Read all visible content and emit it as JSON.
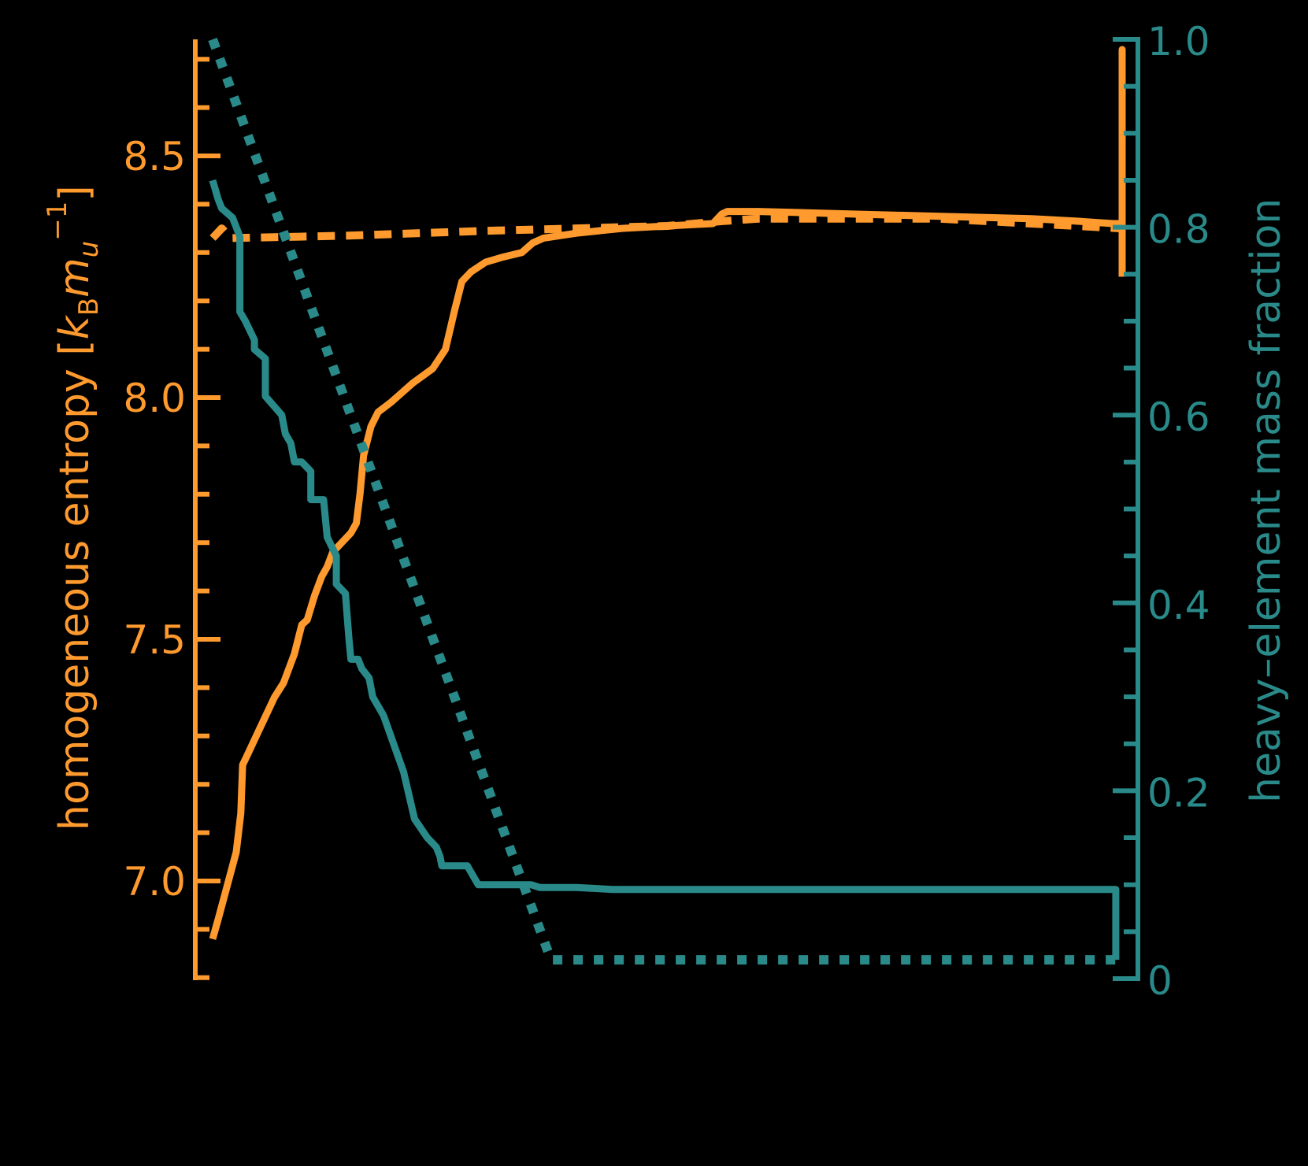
{
  "colors": {
    "background": "#000000",
    "entropy": "#FF9A2E",
    "metallicity": "#2A8A8A"
  },
  "left_axis": {
    "title_main": "homogeneous entropy [",
    "title_k": "k",
    "title_B": "B",
    "title_m": "m",
    "title_u": "u",
    "title_exp": "−1",
    "title_close": "]",
    "ticks": [
      "7.0",
      "7.5",
      "8.0",
      "8.5"
    ]
  },
  "right_axis": {
    "title": "heavy–element mass fraction",
    "ticks": [
      "0",
      "0.2",
      "0.4",
      "0.6",
      "0.8",
      "1.0"
    ]
  },
  "chart_data": {
    "type": "line",
    "title": "",
    "xlabel": "",
    "x_axis_visible": false,
    "x_note": "x is normalized position across the plot (0 = left, 1 = right); x-axis is not rendered",
    "y_left": {
      "label": "homogeneous entropy [k_B m_u^-1]",
      "ylim": [
        6.8,
        8.74
      ],
      "ticks": [
        7.0,
        7.5,
        8.0,
        8.5
      ],
      "minor_step": 0.1
    },
    "y_right": {
      "label": "heavy–element mass fraction",
      "ylim": [
        0,
        1.0
      ],
      "ticks": [
        0,
        0.2,
        0.4,
        0.6,
        0.8,
        1.0
      ],
      "minor_step": 0.05
    },
    "grid": false,
    "legend": null,
    "series": [
      {
        "name": "entropy (solid)",
        "axis": "left",
        "style": "solid",
        "color": "#FF9A2E",
        "x": [
          0.0,
          0.006,
          0.016,
          0.026,
          0.031,
          0.033,
          0.038,
          0.048,
          0.058,
          0.068,
          0.078,
          0.09,
          0.098,
          0.104,
          0.112,
          0.12,
          0.126,
          0.132,
          0.142,
          0.152,
          0.158,
          0.162,
          0.166,
          0.174,
          0.182,
          0.196,
          0.22,
          0.242,
          0.256,
          0.266,
          0.274,
          0.284,
          0.3,
          0.318,
          0.34,
          0.352,
          0.364,
          0.4,
          0.45,
          0.5,
          0.55,
          0.56,
          0.566,
          0.6,
          0.7,
          0.8,
          0.9,
          0.95,
          0.99,
          1.0,
          1.0,
          1.0
        ],
        "y": [
          6.88,
          6.92,
          6.99,
          7.06,
          7.14,
          7.24,
          7.26,
          7.3,
          7.34,
          7.38,
          7.41,
          7.47,
          7.53,
          7.54,
          7.59,
          7.63,
          7.65,
          7.68,
          7.7,
          7.72,
          7.74,
          7.8,
          7.88,
          7.94,
          7.97,
          7.99,
          8.03,
          8.06,
          8.1,
          8.18,
          8.24,
          8.26,
          8.28,
          8.29,
          8.3,
          8.32,
          8.33,
          8.34,
          8.35,
          8.355,
          8.36,
          8.38,
          8.385,
          8.385,
          8.38,
          8.375,
          8.37,
          8.365,
          8.36,
          8.36,
          8.72,
          8.25
        ]
      },
      {
        "name": "entropy (dashed)",
        "axis": "left",
        "style": "dashed",
        "color": "#FF9A2E",
        "x": [
          0.0,
          0.01,
          0.02,
          0.15,
          0.3,
          0.5,
          0.56,
          0.6,
          0.8,
          1.0
        ],
        "y": [
          8.33,
          8.35,
          8.33,
          8.335,
          8.345,
          8.355,
          8.365,
          8.37,
          8.37,
          8.35
        ]
      },
      {
        "name": "heavy-element fraction (solid)",
        "axis": "right",
        "style": "solid",
        "color": "#2A8A8A",
        "x": [
          0.0,
          0.006,
          0.01,
          0.022,
          0.03,
          0.03,
          0.036,
          0.046,
          0.046,
          0.058,
          0.058,
          0.076,
          0.08,
          0.086,
          0.09,
          0.098,
          0.108,
          0.108,
          0.122,
          0.126,
          0.136,
          0.136,
          0.146,
          0.15,
          0.152,
          0.16,
          0.164,
          0.172,
          0.176,
          0.188,
          0.21,
          0.222,
          0.236,
          0.246,
          0.25,
          0.252,
          0.256,
          0.26,
          0.27,
          0.28,
          0.292,
          0.32,
          0.336,
          0.344,
          0.35,
          0.36,
          0.4,
          0.44,
          0.45,
          0.5,
          0.6,
          0.8,
          0.993,
          0.993
        ],
        "y": [
          0.85,
          0.83,
          0.82,
          0.81,
          0.79,
          0.71,
          0.7,
          0.68,
          0.67,
          0.66,
          0.62,
          0.6,
          0.58,
          0.57,
          0.55,
          0.55,
          0.54,
          0.51,
          0.51,
          0.47,
          0.45,
          0.42,
          0.41,
          0.36,
          0.34,
          0.34,
          0.33,
          0.32,
          0.3,
          0.28,
          0.22,
          0.17,
          0.15,
          0.14,
          0.13,
          0.12,
          0.12,
          0.12,
          0.12,
          0.12,
          0.1,
          0.1,
          0.1,
          0.1,
          0.1,
          0.097,
          0.097,
          0.095,
          0.095,
          0.095,
          0.095,
          0.095,
          0.095,
          0.02
        ]
      },
      {
        "name": "heavy-element fraction (dotted)",
        "axis": "right",
        "style": "dotted",
        "color": "#2A8A8A",
        "x": [
          0.0,
          0.372,
          0.38,
          0.993
        ],
        "y": [
          1.0,
          0.02,
          0.02,
          0.02
        ]
      }
    ]
  }
}
